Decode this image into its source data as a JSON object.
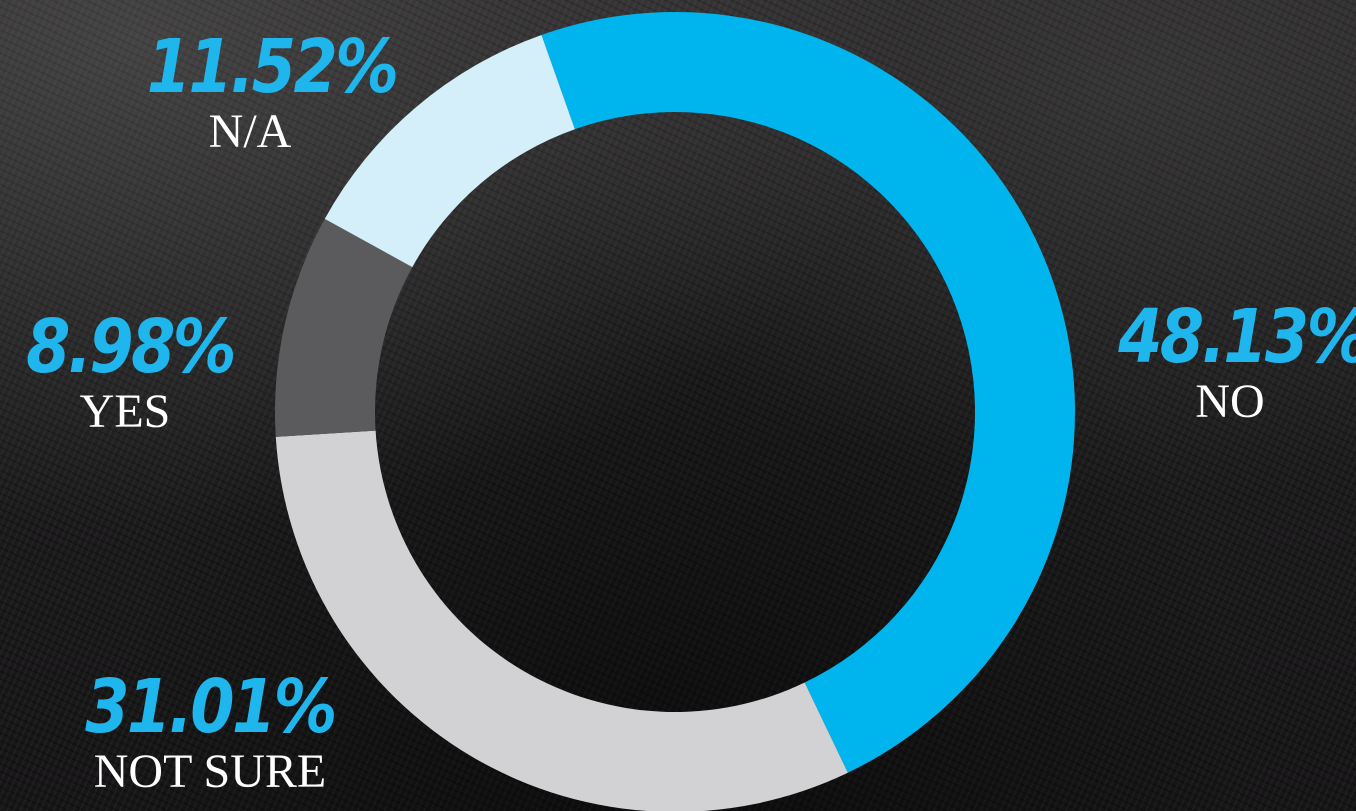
{
  "chart_data": {
    "type": "pie",
    "donut": true,
    "slices": [
      {
        "label": "NO",
        "value_label": "48.13%",
        "value": 48.13,
        "color": "#00b4ee"
      },
      {
        "label": "NOT SURE",
        "value_label": "31.01%",
        "value": 31.01,
        "color": "#d2d2d4"
      },
      {
        "label": "YES",
        "value_label": "8.98%",
        "value": 8.98,
        "color": "#5b5b5d"
      },
      {
        "label": "N/A",
        "value_label": "11.52%",
        "value": 11.52,
        "color": "#d4eefa"
      }
    ],
    "value_color": "#1fb6ee",
    "label_color": "#ffffff"
  }
}
